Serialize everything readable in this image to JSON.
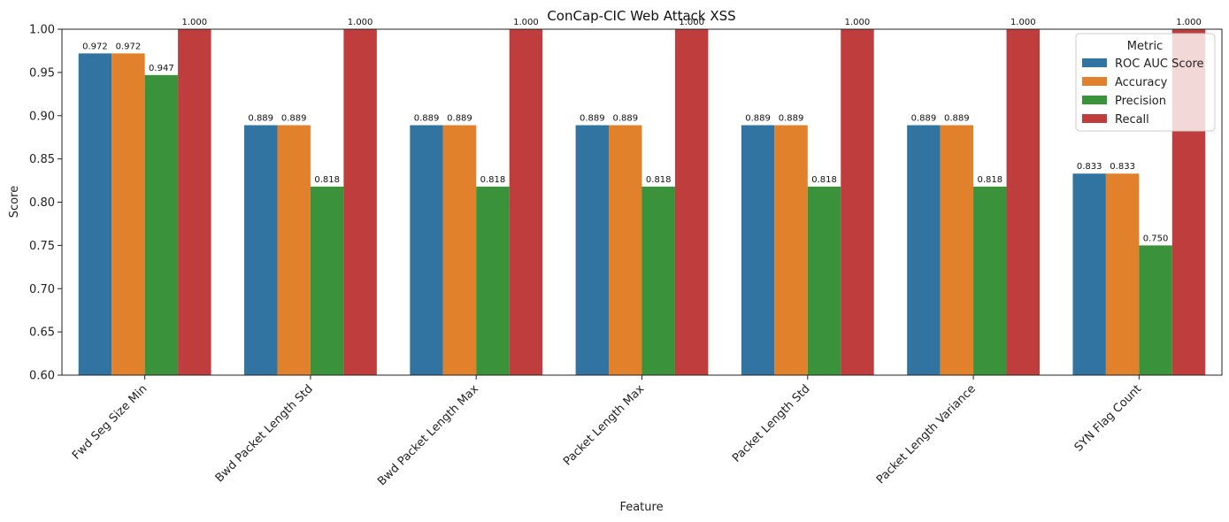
{
  "chart_data": {
    "type": "bar",
    "title": "ConCap-CIC Web Attack XSS",
    "xlabel": "Feature",
    "ylabel": "Score",
    "ylim": [
      0.6,
      1.0
    ],
    "yticks": [
      "0.60",
      "0.65",
      "0.70",
      "0.75",
      "0.80",
      "0.85",
      "0.90",
      "0.95",
      "1.00"
    ],
    "categories": [
      "Fwd Seg Size Min",
      "Bwd Packet Length Std",
      "Bwd Packet Length Max",
      "Packet Length Max",
      "Packet Length Std",
      "Packet Length Variance",
      "SYN Flag Count"
    ],
    "series": [
      {
        "name": "ROC AUC Score",
        "color": "#3274a1",
        "values": [
          0.972,
          0.889,
          0.889,
          0.889,
          0.889,
          0.889,
          0.833
        ]
      },
      {
        "name": "Accuracy",
        "color": "#e1812c",
        "values": [
          0.972,
          0.889,
          0.889,
          0.889,
          0.889,
          0.889,
          0.833
        ]
      },
      {
        "name": "Precision",
        "color": "#3a923a",
        "values": [
          0.947,
          0.818,
          0.818,
          0.818,
          0.818,
          0.818,
          0.75
        ]
      },
      {
        "name": "Recall",
        "color": "#c03d3e",
        "values": [
          1.0,
          1.0,
          1.0,
          1.0,
          1.0,
          1.0,
          1.0
        ]
      }
    ],
    "legend": {
      "title": "Metric",
      "placement": "top-right"
    },
    "grid": false,
    "tick_rotation_deg": 45
  }
}
